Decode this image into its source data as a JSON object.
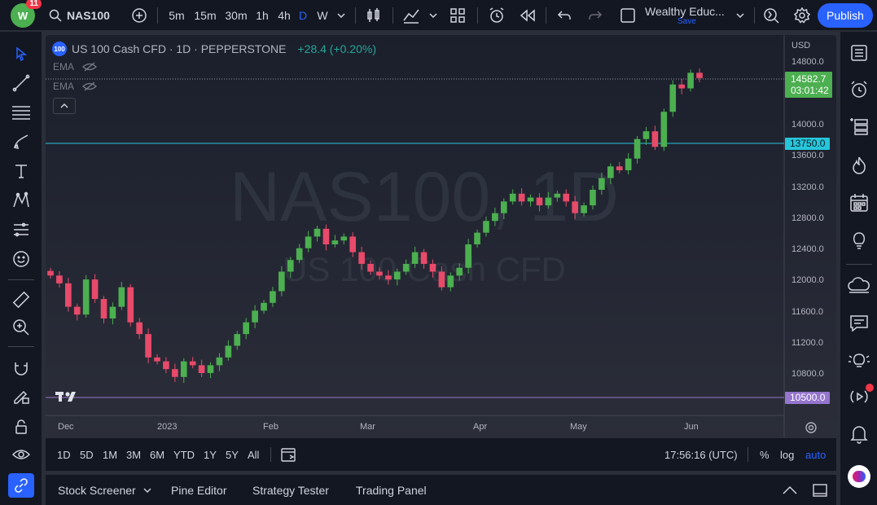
{
  "header": {
    "notification_count": "11",
    "symbol": "NAS100",
    "intervals": [
      "5m",
      "15m",
      "30m",
      "1h",
      "4h",
      "D",
      "W"
    ],
    "active_interval": "D",
    "layout_name": "Wealthy Educ...",
    "layout_save": "Save",
    "publish_label": "Publish"
  },
  "legend": {
    "badge": "100",
    "title": "US 100 Cash CFD · 1D · PEPPERSTONE",
    "change": "+28.4 (+0.20%)",
    "indicators": [
      "EMA",
      "EMA"
    ]
  },
  "watermark": {
    "symbol": "NAS100, 1D",
    "name": "US 100 Cash CFD"
  },
  "price_axis": {
    "currency": "USD",
    "ticks": [
      "14800.0",
      "14000.0",
      "13600.0",
      "13200.0",
      "12800.0",
      "12400.0",
      "12000.0",
      "11600.0",
      "11200.0",
      "10800.0"
    ],
    "last_price": "14582.7",
    "countdown": "03:01:42",
    "level_upper": "13750.0",
    "level_lower": "10500.0"
  },
  "time_axis": {
    "labels": [
      "Dec",
      "2023",
      "Feb",
      "Mar",
      "Apr",
      "May",
      "Jun"
    ]
  },
  "range_bar": {
    "ranges": [
      "1D",
      "5D",
      "1M",
      "3M",
      "6M",
      "YTD",
      "1Y",
      "5Y",
      "All"
    ],
    "clock": "17:56:16 (UTC)",
    "percent": "%",
    "log": "log",
    "auto": "auto"
  },
  "bottom_panel": {
    "tabs": [
      "Stock Screener",
      "Pine Editor",
      "Strategy Tester",
      "Trading Panel"
    ]
  },
  "colors": {
    "up": "#26a69a",
    "up_candle": "#4caf50",
    "down": "#f23645",
    "down_candle": "#e84a6a",
    "accent": "#2962ff",
    "level_upper": "#26c6da",
    "level_lower": "#9575cd"
  },
  "chart_data": {
    "type": "candlestick",
    "symbol": "NAS100",
    "interval": "1D",
    "price_range": [
      10500,
      14900
    ],
    "horizontal_levels": [
      13750.0,
      10500.0
    ],
    "last_price": 14582.7,
    "approx_closes": [
      12050,
      11950,
      11650,
      11550,
      12000,
      11750,
      11500,
      11650,
      11900,
      11450,
      11300,
      11000,
      10950,
      10850,
      10750,
      10950,
      10900,
      10800,
      10900,
      11000,
      11150,
      11300,
      11450,
      11600,
      11700,
      11850,
      12100,
      12250,
      12400,
      12550,
      12650,
      12450,
      12500,
      12550,
      12350,
      12200,
      12100,
      12050,
      12000,
      12100,
      12200,
      12350,
      12200,
      12100,
      11900,
      12050,
      12150,
      12450,
      12600,
      12750,
      12850,
      13000,
      13100,
      13000,
      13050,
      12950,
      13050,
      13100,
      13000,
      12850,
      12950,
      13150,
      13300,
      13450,
      13400,
      13550,
      13800,
      13900,
      13700,
      14150,
      14500,
      14450,
      14650,
      14582
    ]
  }
}
